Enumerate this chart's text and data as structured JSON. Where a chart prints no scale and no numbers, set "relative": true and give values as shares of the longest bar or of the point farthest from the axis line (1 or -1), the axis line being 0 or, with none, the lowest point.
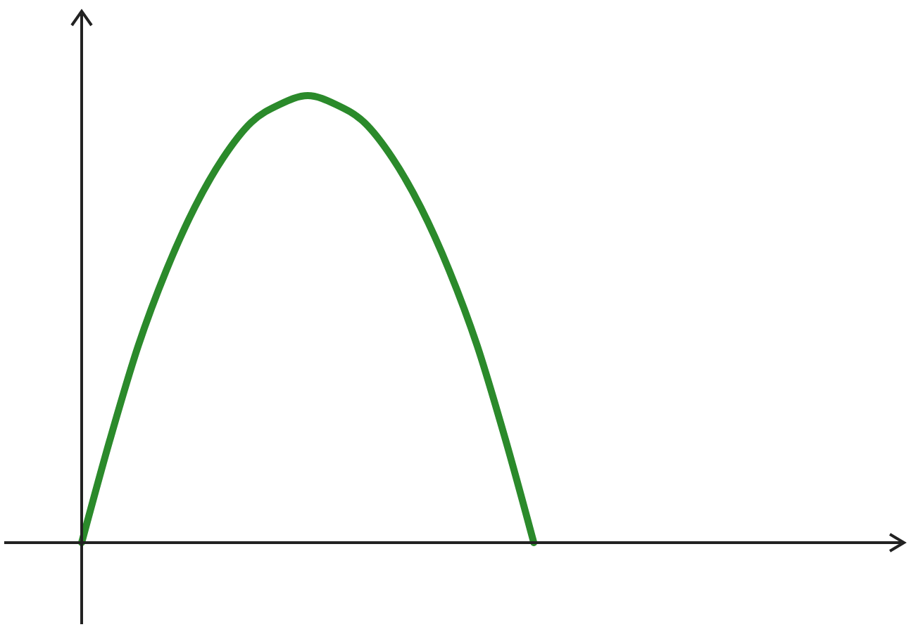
{
  "chart_data": {
    "type": "line",
    "relative": true,
    "categories": [
      null,
      null,
      null,
      null,
      null,
      null,
      null,
      null,
      null,
      null,
      null,
      null,
      null,
      null,
      null,
      null,
      null,
      null,
      null,
      null,
      null,
      null,
      null,
      null,
      null,
      null,
      null,
      null,
      null,
      null
    ],
    "series": [
      {
        "color": "#2b8a2b",
        "values": [
          0,
          0.23,
          0.44,
          0.61,
          0.75,
          0.86,
          0.94,
          0.98,
          1,
          0.98,
          0.94,
          0.86,
          0.75,
          0.61,
          0.44,
          0.23,
          0,
          null,
          null,
          null,
          null,
          null,
          null,
          null,
          null,
          null,
          null,
          null,
          null,
          null
        ]
      }
    ]
  }
}
